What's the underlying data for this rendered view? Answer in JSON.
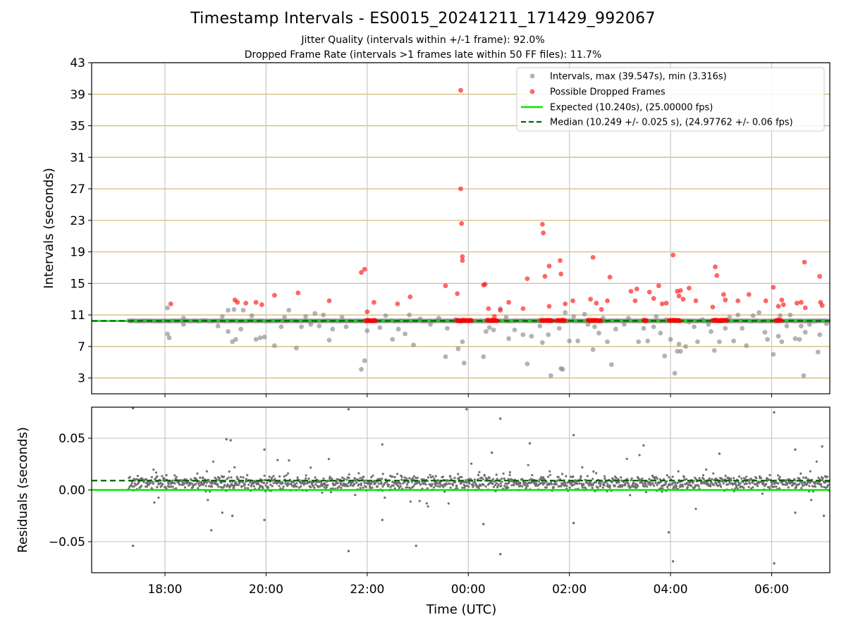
{
  "figure": {
    "title": "Timestamp Intervals - ES0015_20241211_171429_992067",
    "subtitle_1": "Jitter Quality (intervals within +/-1 frame): 92.0%",
    "subtitle_2": "Dropped Frame Rate (intervals >1 frames late within 50 FF files): 11.7%",
    "xlabel": "Time (UTC)"
  },
  "colors": {
    "intervals": "#808080",
    "dropped": "#ff0000",
    "expected": "#00e600",
    "median": "#006400",
    "grid_top": "#d4b572",
    "grid": "#c8c8c8",
    "residual_points": "#707070"
  },
  "chart_data": [
    {
      "type": "scatter",
      "panel": "intervals",
      "ylabel": "Intervals (seconds)",
      "xlim": [
        "16:33",
        "07:09"
      ],
      "ylim": [
        1,
        43
      ],
      "x_ticks": [
        "18:00",
        "20:00",
        "22:00",
        "00:00",
        "02:00",
        "04:00",
        "06:00"
      ],
      "y_ticks": [
        3,
        7,
        11,
        15,
        19,
        23,
        27,
        31,
        35,
        39,
        43
      ],
      "grid": true,
      "legend_position": "top-right",
      "legend": [
        "Intervals, max (39.547s), min (3.316s)",
        "Possible Dropped Frames",
        "Expected (10.240s), (25.00000 fps)",
        "Median (10.249 +/- 0.025 s), (24.97762 +/- 0.06 fps)"
      ],
      "expected": 10.24,
      "median": 10.249,
      "series": [
        {
          "name": "Intervals, max (39.547s), min (3.316s)",
          "points": [
            [
              "18:03",
              11.9
            ],
            [
              "18:03",
              8.6
            ],
            [
              "18:05",
              8.1
            ],
            [
              "18:22",
              10.6
            ],
            [
              "18:22",
              9.8
            ],
            [
              "19:03",
              9.6
            ],
            [
              "19:08",
              10.8
            ],
            [
              "19:15",
              11.6
            ],
            [
              "19:15",
              8.9
            ],
            [
              "19:20",
              7.6
            ],
            [
              "19:22",
              11.7
            ],
            [
              "19:24",
              7.9
            ],
            [
              "19:30",
              9.2
            ],
            [
              "19:33",
              11.6
            ],
            [
              "19:43",
              10.9
            ],
            [
              "19:48",
              7.9
            ],
            [
              "19:53",
              8.1
            ],
            [
              "19:58",
              8.2
            ],
            [
              "20:10",
              7.1
            ],
            [
              "20:18",
              9.5
            ],
            [
              "20:22",
              10.7
            ],
            [
              "20:27",
              11.6
            ],
            [
              "20:36",
              6.8
            ],
            [
              "20:42",
              9.5
            ],
            [
              "20:47",
              10.8
            ],
            [
              "20:53",
              9.8
            ],
            [
              "20:58",
              11.2
            ],
            [
              "21:03",
              9.6
            ],
            [
              "21:08",
              11.0
            ],
            [
              "21:15",
              7.8
            ],
            [
              "21:19",
              9.2
            ],
            [
              "21:30",
              10.7
            ],
            [
              "21:35",
              9.5
            ],
            [
              "21:53",
              4.1
            ],
            [
              "21:57",
              5.2
            ],
            [
              "22:00",
              9.0
            ],
            [
              "22:08",
              10.2
            ],
            [
              "22:15",
              9.4
            ],
            [
              "22:22",
              10.9
            ],
            [
              "22:30",
              7.9
            ],
            [
              "22:37",
              9.2
            ],
            [
              "22:45",
              8.6
            ],
            [
              "22:50",
              11.0
            ],
            [
              "22:55",
              7.2
            ],
            [
              "23:03",
              10.5
            ],
            [
              "23:15",
              9.8
            ],
            [
              "23:25",
              10.6
            ],
            [
              "23:33",
              5.7
            ],
            [
              "23:35",
              9.3
            ],
            [
              "23:45",
              10.4
            ],
            [
              "23:48",
              6.7
            ],
            [
              "23:53",
              7.6
            ],
            [
              "23:55",
              4.9
            ],
            [
              "00:18",
              5.7
            ],
            [
              "00:21",
              8.9
            ],
            [
              "00:25",
              9.4
            ],
            [
              "00:30",
              9.1
            ],
            [
              "00:38",
              11.8
            ],
            [
              "00:45",
              10.7
            ],
            [
              "00:48",
              8.0
            ],
            [
              "00:55",
              9.1
            ],
            [
              "01:05",
              8.5
            ],
            [
              "01:10",
              4.8
            ],
            [
              "01:15",
              8.3
            ],
            [
              "01:25",
              9.6
            ],
            [
              "01:28",
              7.5
            ],
            [
              "01:35",
              8.5
            ],
            [
              "01:38",
              3.3
            ],
            [
              "01:48",
              9.3
            ],
            [
              "01:50",
              4.2
            ],
            [
              "01:52",
              4.1
            ],
            [
              "01:55",
              11.3
            ],
            [
              "02:00",
              7.7
            ],
            [
              "02:05",
              10.8
            ],
            [
              "02:10",
              7.7
            ],
            [
              "02:18",
              11.1
            ],
            [
              "02:22",
              9.8
            ],
            [
              "02:28",
              6.6
            ],
            [
              "02:30",
              9.5
            ],
            [
              "02:35",
              8.7
            ],
            [
              "02:40",
              10.6
            ],
            [
              "02:45",
              7.6
            ],
            [
              "02:50",
              4.7
            ],
            [
              "02:55",
              9.2
            ],
            [
              "03:05",
              9.8
            ],
            [
              "03:10",
              10.6
            ],
            [
              "03:22",
              7.6
            ],
            [
              "03:28",
              9.3
            ],
            [
              "03:33",
              7.7
            ],
            [
              "03:40",
              9.5
            ],
            [
              "03:43",
              10.8
            ],
            [
              "03:48",
              8.7
            ],
            [
              "03:53",
              5.8
            ],
            [
              "03:55",
              10.4
            ],
            [
              "04:00",
              7.9
            ],
            [
              "04:05",
              3.6
            ],
            [
              "04:08",
              6.4
            ],
            [
              "04:10",
              7.3
            ],
            [
              "04:12",
              6.4
            ],
            [
              "04:18",
              7.0
            ],
            [
              "04:22",
              10.1
            ],
            [
              "04:28",
              9.5
            ],
            [
              "04:32",
              7.6
            ],
            [
              "04:38",
              10.4
            ],
            [
              "04:45",
              9.8
            ],
            [
              "04:48",
              8.9
            ],
            [
              "04:52",
              6.5
            ],
            [
              "04:58",
              7.6
            ],
            [
              "05:05",
              9.3
            ],
            [
              "05:10",
              10.7
            ],
            [
              "05:15",
              7.7
            ],
            [
              "05:20",
              11.0
            ],
            [
              "05:25",
              9.3
            ],
            [
              "05:30",
              7.1
            ],
            [
              "05:38",
              10.9
            ],
            [
              "05:45",
              11.3
            ],
            [
              "05:52",
              8.8
            ],
            [
              "05:55",
              7.9
            ],
            [
              "06:02",
              6.0
            ],
            [
              "06:08",
              8.3
            ],
            [
              "06:10",
              10.9
            ],
            [
              "06:12",
              7.6
            ],
            [
              "06:18",
              9.6
            ],
            [
              "06:22",
              11.0
            ],
            [
              "06:28",
              8.0
            ],
            [
              "06:33",
              7.9
            ],
            [
              "06:35",
              9.6
            ],
            [
              "06:38",
              3.3
            ],
            [
              "06:40",
              8.8
            ],
            [
              "06:45",
              9.8
            ],
            [
              "06:50",
              10.2
            ],
            [
              "06:55",
              6.3
            ],
            [
              "06:57",
              8.5
            ],
            [
              "07:05",
              9.9
            ]
          ]
        },
        {
          "name": "Possible Dropped Frames",
          "points": [
            [
              "18:07",
              12.4
            ],
            [
              "19:23",
              12.9
            ],
            [
              "19:26",
              12.6
            ],
            [
              "19:36",
              12.5
            ],
            [
              "19:48",
              12.6
            ],
            [
              "19:55",
              12.3
            ],
            [
              "20:10",
              13.5
            ],
            [
              "20:38",
              13.8
            ],
            [
              "21:15",
              12.8
            ],
            [
              "21:53",
              16.4
            ],
            [
              "21:57",
              16.8
            ],
            [
              "22:00",
              11.4
            ],
            [
              "22:08",
              12.6
            ],
            [
              "22:36",
              12.4
            ],
            [
              "22:51",
              13.3
            ],
            [
              "23:33",
              14.7
            ],
            [
              "23:47",
              13.7
            ],
            [
              "23:51",
              39.5
            ],
            [
              "23:51",
              27.0
            ],
            [
              "23:52",
              22.6
            ],
            [
              "23:53",
              18.4
            ],
            [
              "23:53",
              17.9
            ],
            [
              "00:18",
              14.8
            ],
            [
              "00:20",
              14.9
            ],
            [
              "00:24",
              11.8
            ],
            [
              "00:31",
              10.8
            ],
            [
              "00:38",
              11.6
            ],
            [
              "00:48",
              12.6
            ],
            [
              "01:05",
              11.8
            ],
            [
              "01:10",
              15.6
            ],
            [
              "01:28",
              22.5
            ],
            [
              "01:29",
              21.4
            ],
            [
              "01:31",
              15.9
            ],
            [
              "01:36",
              17.2
            ],
            [
              "01:36",
              12.1
            ],
            [
              "01:49",
              17.9
            ],
            [
              "01:50",
              16.2
            ],
            [
              "01:55",
              12.4
            ],
            [
              "02:04",
              12.8
            ],
            [
              "02:25",
              13.0
            ],
            [
              "02:28",
              18.3
            ],
            [
              "02:32",
              12.5
            ],
            [
              "02:38",
              11.7
            ],
            [
              "02:45",
              12.8
            ],
            [
              "02:48",
              15.8
            ],
            [
              "03:13",
              14.0
            ],
            [
              "03:18",
              12.8
            ],
            [
              "03:20",
              14.3
            ],
            [
              "03:35",
              13.9
            ],
            [
              "03:40",
              13.1
            ],
            [
              "03:46",
              14.7
            ],
            [
              "03:50",
              12.4
            ],
            [
              "03:55",
              12.5
            ],
            [
              "04:03",
              18.6
            ],
            [
              "04:08",
              14.0
            ],
            [
              "04:10",
              13.4
            ],
            [
              "04:12",
              14.1
            ],
            [
              "04:15",
              13.0
            ],
            [
              "04:22",
              14.4
            ],
            [
              "04:30",
              12.8
            ],
            [
              "04:50",
              12.0
            ],
            [
              "04:53",
              17.1
            ],
            [
              "04:55",
              16.0
            ],
            [
              "05:03",
              13.6
            ],
            [
              "05:05",
              12.9
            ],
            [
              "05:20",
              12.8
            ],
            [
              "05:33",
              13.6
            ],
            [
              "05:53",
              12.8
            ],
            [
              "06:02",
              14.5
            ],
            [
              "06:08",
              12.1
            ],
            [
              "06:12",
              12.9
            ],
            [
              "06:14",
              12.3
            ],
            [
              "06:30",
              12.5
            ],
            [
              "06:35",
              12.6
            ],
            [
              "06:39",
              17.7
            ],
            [
              "06:40",
              11.9
            ],
            [
              "06:57",
              15.9
            ],
            [
              "06:58",
              12.6
            ],
            [
              "07:00",
              12.2
            ]
          ]
        },
        {
          "name": "Possible Dropped Frames",
          "baseline_clusters": [
            [
              "21:58",
              "22:10"
            ],
            [
              "23:46",
              "00:05"
            ],
            [
              "00:22",
              "00:35"
            ],
            [
              "01:26",
              "01:40"
            ],
            [
              "01:45",
              "01:55"
            ],
            [
              "02:22",
              "02:38"
            ],
            [
              "03:28",
              "03:32"
            ],
            [
              "03:58",
              "04:12"
            ],
            [
              "04:50",
              "05:08"
            ],
            [
              "06:05",
              "06:12"
            ]
          ]
        }
      ]
    },
    {
      "type": "scatter",
      "panel": "residuals",
      "ylabel": "Residuals (seconds)",
      "xlim": [
        "16:33",
        "07:09"
      ],
      "ylim": [
        -0.08,
        0.08
      ],
      "x_ticks": [
        "18:00",
        "20:00",
        "22:00",
        "00:00",
        "02:00",
        "04:00",
        "06:00"
      ],
      "y_ticks": [
        -0.05,
        0.0,
        0.05
      ],
      "y_tick_labels": [
        "−0.05",
        "0.00",
        "0.05"
      ],
      "grid": true,
      "expected": 0.0,
      "median": 0.009,
      "residual_band": [
        -0.008,
        0.022
      ],
      "outliers": [
        [
          "17:22",
          0.079
        ],
        [
          "17:22",
          -0.054
        ],
        [
          "18:55",
          -0.039
        ],
        [
          "19:08",
          -0.022
        ],
        [
          "19:13",
          0.049
        ],
        [
          "19:18",
          0.048
        ],
        [
          "19:20",
          -0.025
        ],
        [
          "19:58",
          -0.029
        ],
        [
          "19:58",
          0.039
        ],
        [
          "21:38",
          0.078
        ],
        [
          "21:38",
          -0.059
        ],
        [
          "22:18",
          -0.029
        ],
        [
          "22:18",
          0.044
        ],
        [
          "22:58",
          -0.054
        ],
        [
          "23:58",
          0.078
        ],
        [
          "00:18",
          -0.033
        ],
        [
          "00:28",
          0.036
        ],
        [
          "00:38",
          -0.062
        ],
        [
          "00:38",
          0.069
        ],
        [
          "01:13",
          0.045
        ],
        [
          "02:05",
          -0.032
        ],
        [
          "02:05",
          0.053
        ],
        [
          "03:28",
          0.043
        ],
        [
          "03:58",
          -0.041
        ],
        [
          "04:03",
          -0.069
        ],
        [
          "04:58",
          0.035
        ],
        [
          "06:03",
          -0.071
        ],
        [
          "06:03",
          0.075
        ],
        [
          "06:28",
          0.039
        ],
        [
          "06:28",
          -0.022
        ],
        [
          "07:00",
          0.042
        ],
        [
          "07:02",
          -0.025
        ]
      ]
    }
  ]
}
